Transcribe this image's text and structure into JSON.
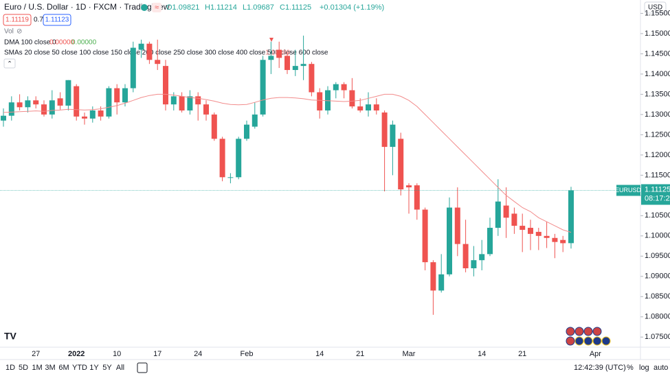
{
  "header": {
    "symbol": "Euro / U.S. Dollar · 1D · FXCM · TradingView",
    "open": "O1.09821",
    "high": "H1.11214",
    "low": "L1.09687",
    "close": "C1.11125",
    "change": "+0.01304 (+1.19%)",
    "bid": "1.11119",
    "spread": "0.7",
    "ask": "1.11123"
  },
  "indicators": {
    "volume": "Vol",
    "dma": "DMA 100 close 0",
    "dma_value_1": "0.00000",
    "dma_value_2": "0.00000"
  },
  "price_scale": {
    "currency": "USD",
    "symbol_tag": "EURUSD",
    "countdown": "08:17:20"
  },
  "toolbar": {
    "ranges": [
      "1D",
      "5D",
      "1M",
      "3M",
      "6M",
      "YTD",
      "1Y",
      "5Y",
      "All"
    ],
    "time": "12:42:39 (UTC)",
    "percent": "%",
    "log": "log",
    "auto": "auto"
  },
  "chart_data": {
    "type": "candlestick",
    "up_color": "#26a69a",
    "down_color": "#ef5350",
    "grid": false,
    "categories": [
      null,
      null,
      null,
      null,
      "27",
      null,
      null,
      null,
      null,
      "2022",
      null,
      null,
      null,
      null,
      "10",
      null,
      null,
      null,
      null,
      "17",
      null,
      null,
      null,
      null,
      "24",
      null,
      null,
      null,
      null,
      null,
      "Feb",
      null,
      null,
      null,
      null,
      null,
      null,
      null,
      null,
      "14",
      null,
      null,
      null,
      null,
      "21",
      null,
      null,
      null,
      null,
      null,
      "Mar",
      null,
      null,
      null,
      null,
      null,
      null,
      null,
      null,
      "14",
      null,
      null,
      null,
      null,
      "21",
      null,
      null,
      null,
      null,
      null,
      null,
      null,
      null,
      "Apr"
    ],
    "open": [
      1.1285,
      1.1297,
      1.133,
      1.1318,
      1.1335,
      1.1325,
      1.13,
      1.134,
      1.1322,
      1.137,
      1.1295,
      1.129,
      1.131,
      1.1295,
      1.1365,
      1.133,
      1.1365,
      1.146,
      1.1475,
      1.1435,
      1.142,
      1.1325,
      1.1345,
      1.131,
      1.1345,
      1.1325,
      1.13,
      1.124,
      1.1145,
      1.1145,
      1.124,
      1.127,
      1.13,
      1.1435,
      1.146,
      1.1445,
      1.141,
      1.142,
      1.1425,
      1.1355,
      1.131,
      1.136,
      1.1375,
      1.136,
      1.132,
      1.131,
      1.1325,
      1.1305,
      1.122,
      1.124,
      1.1125,
      1.1125,
      1.1065,
      1.0935,
      1.0865,
      1.0905,
      1.107,
      1.098,
      1.092,
      1.094,
      1.0955,
      1.102,
      1.1075,
      1.1055,
      1.1025,
      1.102,
      1.101,
      1.1,
      1.0995,
      1.099,
      1.09821,
      null,
      null,
      null
    ],
    "high": [
      1.1315,
      1.1345,
      1.135,
      1.1345,
      1.1345,
      1.1335,
      1.136,
      1.1355,
      1.1385,
      1.1375,
      1.1305,
      1.132,
      1.132,
      1.137,
      1.1375,
      1.1375,
      1.148,
      1.1485,
      1.148,
      1.1485,
      1.1435,
      1.1355,
      1.1355,
      1.136,
      1.1355,
      1.1335,
      1.1305,
      1.1245,
      1.1155,
      1.1245,
      1.1285,
      1.133,
      1.1445,
      1.148,
      1.148,
      1.1455,
      1.146,
      1.1495,
      1.143,
      1.1365,
      1.137,
      1.138,
      1.138,
      1.139,
      1.134,
      1.1355,
      1.134,
      1.131,
      1.1285,
      1.1255,
      1.113,
      1.113,
      1.107,
      1.094,
      1.0955,
      1.1095,
      1.112,
      1.104,
      1.0975,
      1.099,
      1.1045,
      1.114,
      1.112,
      1.107,
      1.1055,
      1.104,
      1.102,
      1.1035,
      1.1005,
      1.1,
      1.11214,
      null,
      null,
      null
    ],
    "low": [
      1.127,
      1.1285,
      1.131,
      1.1305,
      1.1315,
      1.1295,
      1.129,
      1.1312,
      1.131,
      1.1285,
      1.1275,
      1.128,
      1.1285,
      1.129,
      1.13,
      1.132,
      1.1355,
      1.144,
      1.1425,
      1.141,
      1.131,
      1.131,
      1.1305,
      1.13,
      1.1285,
      1.1285,
      1.1235,
      1.1135,
      1.113,
      1.114,
      1.1235,
      1.1265,
      1.1295,
      1.14,
      1.1415,
      1.14,
      1.1395,
      1.1385,
      1.1345,
      1.129,
      1.13,
      1.134,
      1.134,
      1.1315,
      1.1305,
      1.1295,
      1.13,
      1.111,
      1.115,
      1.11,
      1.1055,
      1.104,
      1.0915,
      1.0805,
      1.086,
      1.09,
      1.095,
      1.091,
      1.09,
      1.0915,
      1.095,
      1.1,
      1.0995,
      1.1005,
      1.096,
      1.0965,
      1.0965,
      1.097,
      1.0945,
      1.096,
      1.09687,
      null,
      null,
      null
    ],
    "close": [
      1.1297,
      1.133,
      1.1318,
      1.1335,
      1.1325,
      1.13,
      1.1335,
      1.1322,
      1.1385,
      1.1295,
      1.129,
      1.131,
      1.1295,
      1.1365,
      1.133,
      1.1365,
      1.1465,
      1.1475,
      1.1435,
      1.1425,
      1.1325,
      1.1345,
      1.131,
      1.1345,
      1.1325,
      1.13,
      1.124,
      1.1145,
      1.1145,
      1.124,
      1.1275,
      1.13,
      1.1435,
      1.1445,
      1.144,
      1.141,
      1.142,
      1.1425,
      1.1355,
      1.131,
      1.136,
      1.1375,
      1.136,
      1.132,
      1.131,
      1.1325,
      1.131,
      1.122,
      1.1275,
      1.1115,
      1.112,
      1.1065,
      1.0935,
      1.0865,
      1.0905,
      1.107,
      1.098,
      1.092,
      1.094,
      1.0955,
      1.102,
      1.1085,
      1.1045,
      1.1025,
      1.1015,
      1.1005,
      1.1,
      1.0995,
      1.0985,
      1.0982,
      1.11125,
      null,
      null,
      null
    ],
    "series": [
      {
        "name": "SMAs 20 close 50 close 100 close 150 close 200 close 250 close 300 close 400 close 500 close 600 close",
        "color": "#f28b8b",
        "values": [
          1.1305,
          1.1306,
          1.1307,
          1.1308,
          1.1309,
          1.1308,
          1.131,
          1.1311,
          1.1313,
          1.1312,
          1.1311,
          1.1312,
          1.1314,
          1.1318,
          1.1322,
          1.1328,
          1.1335,
          1.1342,
          1.1347,
          1.135,
          1.135,
          1.1348,
          1.1345,
          1.1342,
          1.134,
          1.1337,
          1.1333,
          1.1328,
          1.1325,
          1.1324,
          1.1325,
          1.133,
          1.1336,
          1.134,
          1.1342,
          1.1342,
          1.1341,
          1.1339,
          1.1336,
          1.1335,
          1.1334,
          1.1333,
          1.1332,
          1.1333,
          1.1335,
          1.134,
          1.1345,
          1.135,
          1.135,
          1.1345,
          1.1335,
          1.132,
          1.13,
          1.128,
          1.126,
          1.124,
          1.122,
          1.12,
          1.118,
          1.116,
          1.114,
          1.112,
          1.11,
          1.1085,
          1.107,
          1.106,
          1.1045,
          1.1035,
          1.1025,
          1.1015,
          1.10089,
          null,
          null,
          null
        ]
      }
    ],
    "ylim": [
      1.0725,
      1.1583
    ],
    "yticks": [
      {
        "value": 1.075,
        "label": "1.07500"
      },
      {
        "value": 1.08,
        "label": "1.08000"
      },
      {
        "value": 1.085,
        "label": "1.08500"
      },
      {
        "value": 1.09,
        "label": "1.09000"
      },
      {
        "value": 1.095,
        "label": "1.09500"
      },
      {
        "value": 1.1,
        "label": "1.10000"
      },
      {
        "value": 1.105,
        "label": "1.10500"
      },
      {
        "value": 1.11,
        "label": "1.11000"
      },
      {
        "value": 1.115,
        "label": "1.11500"
      },
      {
        "value": 1.12,
        "label": "1.12000"
      },
      {
        "value": 1.125,
        "label": "1.12500"
      },
      {
        "value": 1.13,
        "label": "1.13000"
      },
      {
        "value": 1.135,
        "label": "1.13500"
      },
      {
        "value": 1.14,
        "label": "1.14000"
      },
      {
        "value": 1.145,
        "label": "1.14500"
      },
      {
        "value": 1.15,
        "label": "1.15000"
      },
      {
        "value": 1.155,
        "label": "1.15500"
      }
    ]
  }
}
